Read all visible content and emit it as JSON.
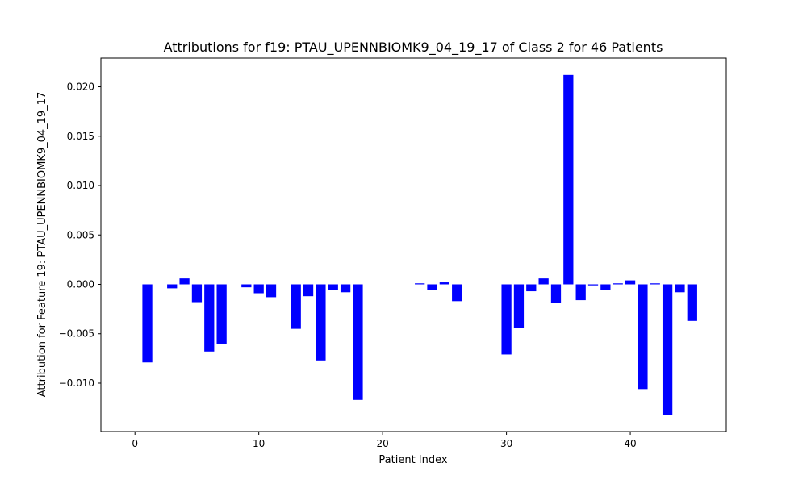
{
  "chart_data": {
    "type": "bar",
    "title": "Attributions for f19: PTAU_UPENNBIOMK9_04_19_17 of Class 2 for 46 Patients",
    "xlabel": "Patient Index",
    "ylabel": "Attribution for Feature 19: PTAU_UPENNBIOMK9_04_19_17",
    "xlim": [
      -2.75,
      47.75
    ],
    "ylim": [
      -0.0149,
      0.0229
    ],
    "xticks": [
      0,
      10,
      20,
      30,
      40
    ],
    "xtick_labels": [
      "0",
      "10",
      "20",
      "30",
      "40"
    ],
    "yticks": [
      -0.01,
      -0.005,
      0.0,
      0.005,
      0.01,
      0.015,
      0.02
    ],
    "ytick_labels": [
      "−0.010",
      "−0.005",
      "0.000",
      "0.005",
      "0.010",
      "0.015",
      "0.020"
    ],
    "bar_color": "#0000ff",
    "grid": false,
    "x": [
      0,
      1,
      2,
      3,
      4,
      5,
      6,
      7,
      8,
      9,
      10,
      11,
      12,
      13,
      14,
      15,
      16,
      17,
      18,
      19,
      20,
      21,
      22,
      23,
      24,
      25,
      26,
      27,
      28,
      29,
      30,
      31,
      32,
      33,
      34,
      35,
      36,
      37,
      38,
      39,
      40,
      41,
      42,
      43,
      44,
      45
    ],
    "values": [
      0,
      -0.0079,
      0,
      -0.0004,
      0.0006,
      -0.0018,
      -0.0068,
      -0.006,
      0,
      -0.0003,
      -0.0009,
      -0.0013,
      0,
      -0.0045,
      -0.0012,
      -0.0077,
      -0.0006,
      -0.0008,
      -0.0117,
      0,
      0,
      0,
      0,
      0.0001,
      -0.0006,
      0.0002,
      -0.0017,
      0,
      0,
      0,
      -0.0071,
      -0.0044,
      -0.0007,
      0.0006,
      -0.0019,
      0.0212,
      -0.0016,
      -0.0001,
      -0.0006,
      0.0001,
      0.0004,
      -0.0106,
      0.0001,
      -0.0132,
      -0.0008,
      -0.0037
    ]
  }
}
